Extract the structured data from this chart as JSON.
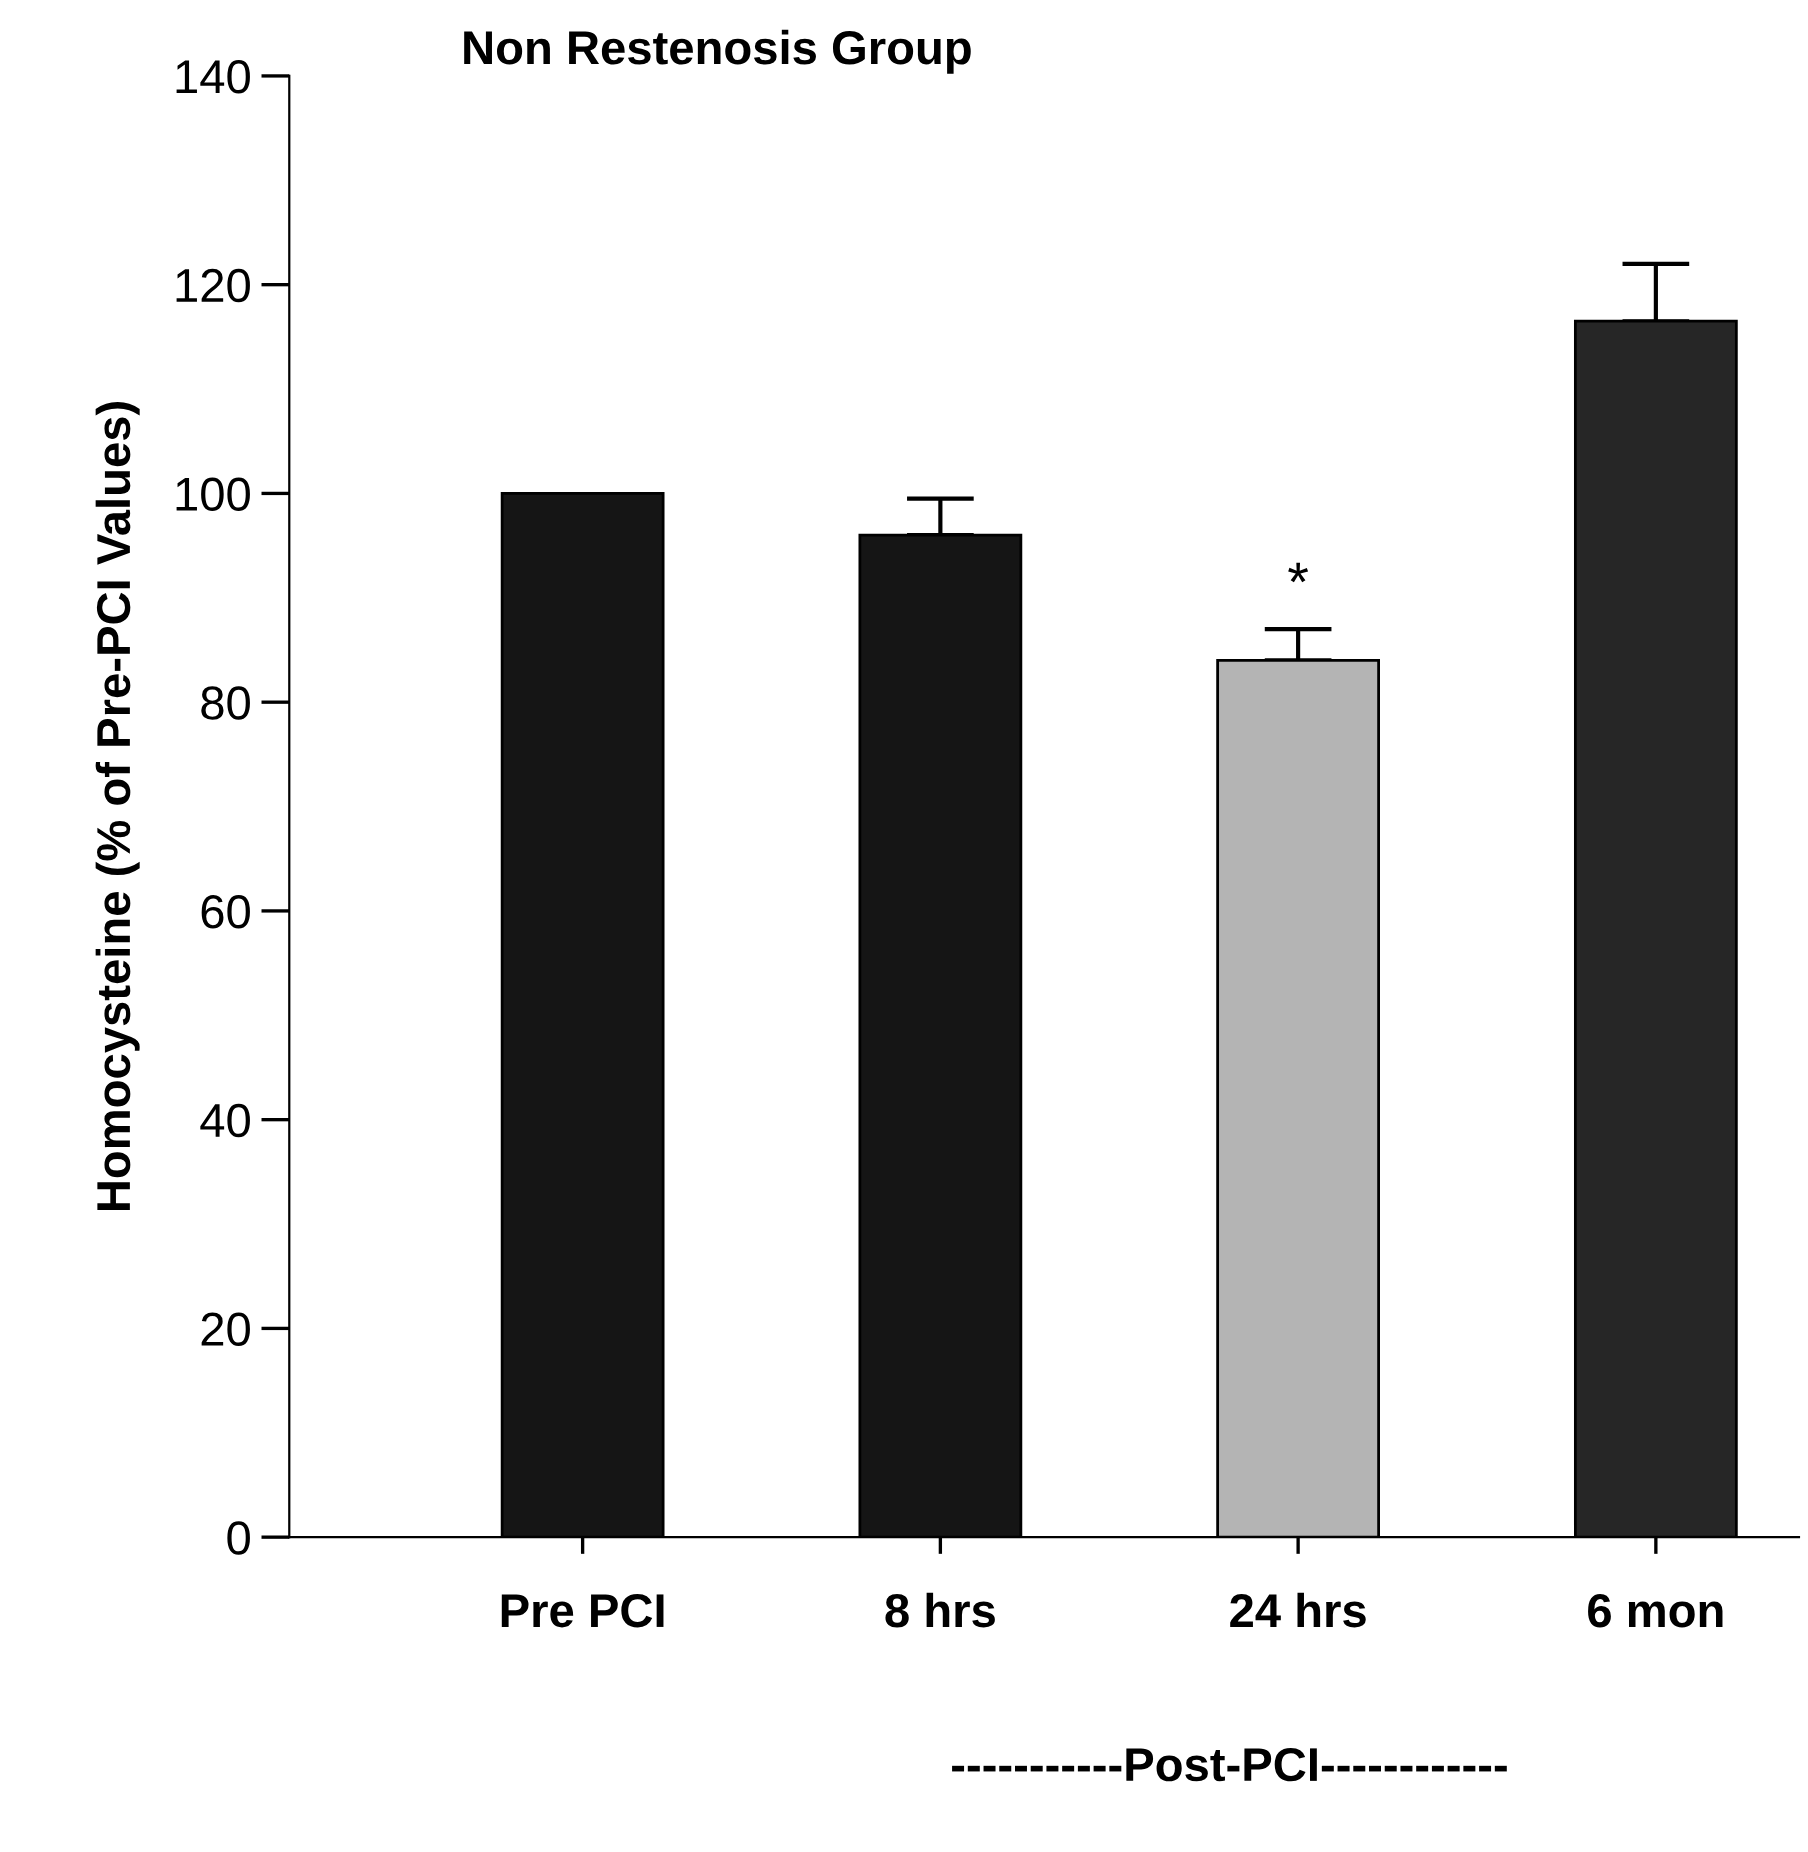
{
  "chart_data": {
    "type": "bar",
    "title": "Non Restenosis Group",
    "ylabel": "Homocysteine (% of Pre-PCI Values)",
    "categories": [
      "Pre PCI",
      "8 hrs",
      "24 hrs",
      "6 mon"
    ],
    "values": [
      100,
      96,
      84,
      116.5
    ],
    "colors": [
      "#151515",
      "#151515",
      "#b4b4b4",
      "#262626"
    ],
    "errors": [
      null,
      [
        96,
        99.5
      ],
      [
        84,
        87
      ],
      [
        116.5,
        122
      ]
    ],
    "ylim": [
      0,
      140
    ],
    "yticks": [
      0,
      20,
      40,
      60,
      80,
      100,
      120,
      140
    ],
    "grid": false,
    "legend": false,
    "annotations": [
      {
        "text": "*",
        "x": "24 hrs",
        "y": 87
      },
      "-----------Post-PCI------------"
    ]
  }
}
